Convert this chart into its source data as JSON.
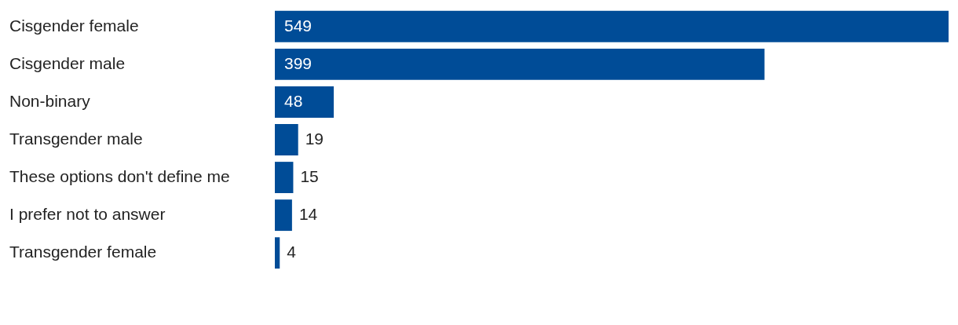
{
  "chart_data": {
    "type": "bar",
    "orientation": "horizontal",
    "categories": [
      "Cisgender female",
      "Cisgender male",
      "Non-binary",
      "Transgender male",
      "These options don't define me",
      "I prefer not to answer",
      "Transgender female"
    ],
    "values": [
      549,
      399,
      48,
      19,
      15,
      14,
      4
    ],
    "color": "#004c97",
    "data_labels": true
  }
}
